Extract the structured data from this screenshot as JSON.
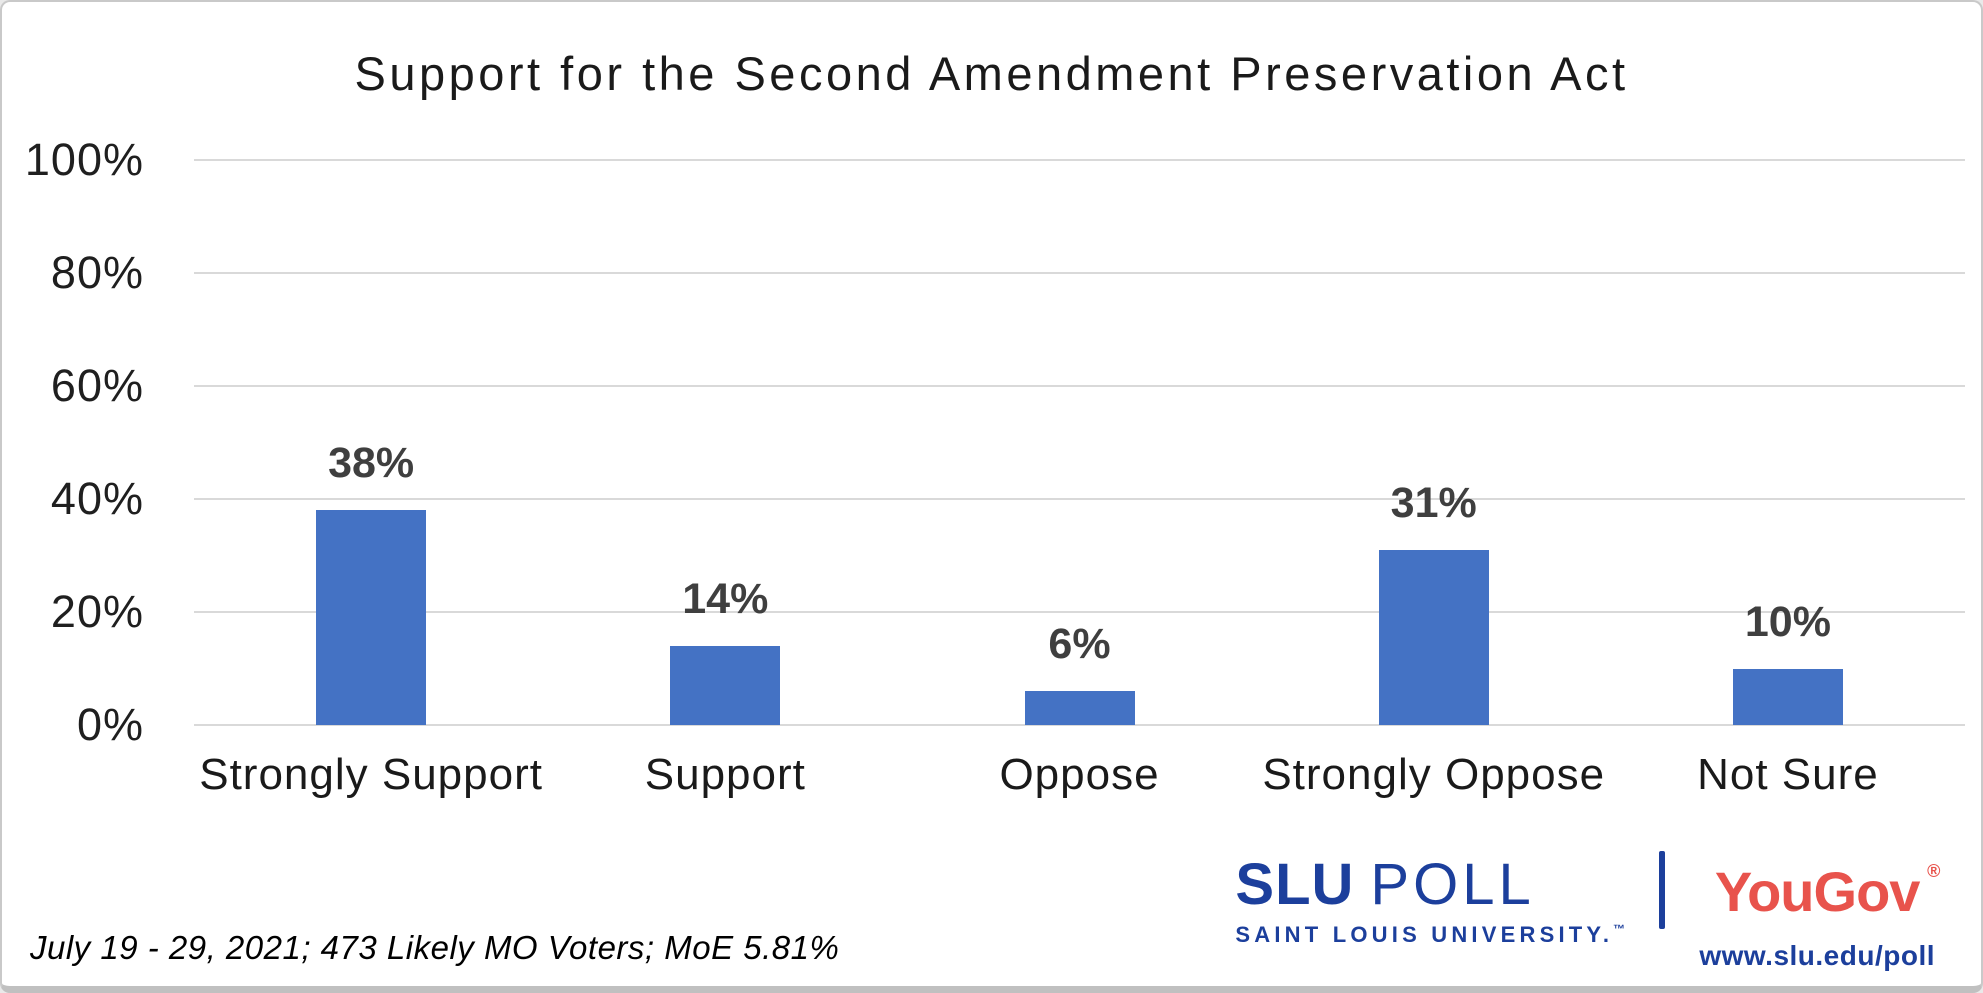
{
  "chart_data": {
    "type": "bar",
    "title": "Support for the Second Amendment Preservation Act",
    "categories": [
      "Strongly Support",
      "Support",
      "Oppose",
      "Strongly Oppose",
      "Not Sure"
    ],
    "values": [
      38,
      14,
      6,
      31,
      10
    ],
    "value_labels": [
      "38%",
      "14%",
      "6%",
      "31%",
      "10%"
    ],
    "xlabel": "",
    "ylabel": "",
    "ylim": [
      0,
      100
    ],
    "yticks": [
      0,
      20,
      40,
      60,
      80,
      100
    ],
    "ytick_labels": [
      "0%",
      "20%",
      "40%",
      "60%",
      "80%",
      "100%"
    ],
    "grid": true,
    "legend": false,
    "bar_color": "#4472c4",
    "gridline_color": "#d9d9d9",
    "value_label_color": "#3f3f3f"
  },
  "footnote": "July 19 - 29, 2021; 473 Likely MO Voters; MoE 5.81%",
  "branding": {
    "slu": {
      "name_bold": "SLU",
      "name_light": "POLL",
      "subtitle": "SAINT LOUIS UNIVERSITY.",
      "trademark": "™",
      "color": "#1c3f9c"
    },
    "yougov": {
      "name": "YouGov",
      "registered": "®",
      "color": "#e8534c"
    },
    "url": "www.slu.edu/poll"
  }
}
